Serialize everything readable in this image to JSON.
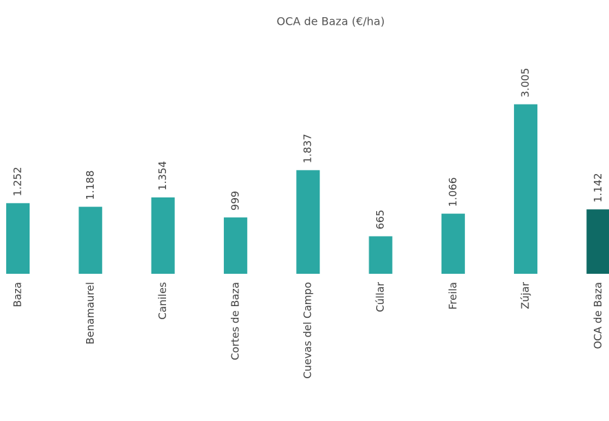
{
  "chart_data": {
    "type": "bar",
    "title": "OCA de Baza (€/ha)",
    "categories": [
      "Baza",
      "Benamaurel",
      "Caniles",
      "Cortes de Baza",
      "Cuevas del Campo",
      "Cúllar",
      "Freila",
      "Zújar",
      "OCA de Baza"
    ],
    "values": [
      1252,
      1188,
      1354,
      999,
      1837,
      665,
      1066,
      3005,
      1142
    ],
    "value_labels": [
      "1.252",
      "1.188",
      "1.354",
      "999",
      "1.837",
      "665",
      "1.066",
      "3.005",
      "1.142"
    ],
    "colors": [
      "#2ba8a3",
      "#2ba8a3",
      "#2ba8a3",
      "#2ba8a3",
      "#2ba8a3",
      "#2ba8a3",
      "#2ba8a3",
      "#2ba8a3",
      "#0f6a65"
    ],
    "ylim": [
      0,
      3500
    ]
  }
}
